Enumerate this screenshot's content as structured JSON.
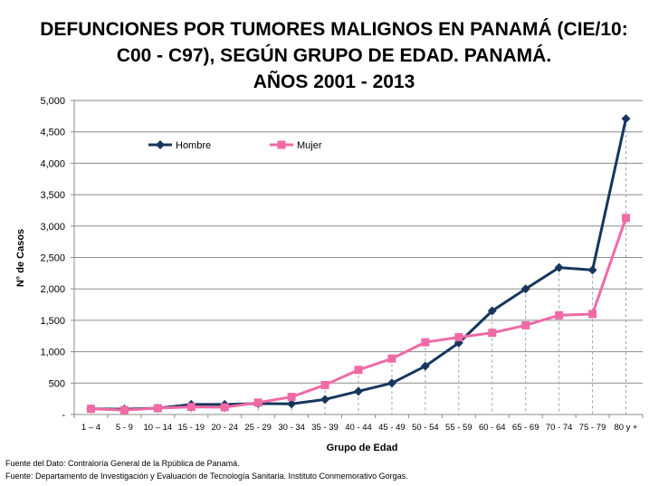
{
  "chart_data": {
    "type": "line",
    "title": [
      "DEFUNCIONES POR TUMORES MALIGNOS EN PANAMÁ (CIE/10:",
      "C00 - C97), SEGÚN GRUPO DE EDAD. PANAMÁ.",
      "AÑOS 2001 - 2013"
    ],
    "xlabel": "Grupo de Edad",
    "ylabel": "N° de Casos",
    "ylim": [
      0,
      5000
    ],
    "yticks": [
      "-",
      "500",
      "1,000",
      "1,500",
      "2,000",
      "2,500",
      "3,000",
      "3,500",
      "4,000",
      "4,500",
      "5,000"
    ],
    "grid": true,
    "legend_position": "top-left",
    "categories": [
      "1 – 4",
      "5 - 9",
      "10 – 14",
      "15 - 19",
      "20 - 24",
      "25 - 29",
      "30 - 34",
      "35 - 39",
      "40 - 44",
      "45 - 49",
      "50 - 54",
      "55 - 59",
      "60 - 64",
      "65 - 69",
      "70 - 74",
      "75 - 79",
      "80 y +"
    ],
    "series": [
      {
        "name": "Hombre",
        "color": "#17365d",
        "marker": "diamond",
        "values": [
          90,
          85,
          100,
          160,
          160,
          175,
          170,
          240,
          370,
          500,
          770,
          1140,
          1650,
          2000,
          2340,
          2300,
          4710
        ]
      },
      {
        "name": "Mujer",
        "color": "#f06aa6",
        "marker": "square",
        "values": [
          90,
          70,
          100,
          120,
          115,
          190,
          280,
          470,
          710,
          890,
          1150,
          1230,
          1300,
          1420,
          1580,
          1600,
          3130
        ]
      }
    ]
  },
  "footer": {
    "source1": "Fuente del Dato: Contraloría General de la Rpública de Panamá.",
    "source2": "Fuente: Departamento de Investigación y Evaluación de Tecnología Sanitaria. Instituto Conmemorativo Gorgas."
  }
}
